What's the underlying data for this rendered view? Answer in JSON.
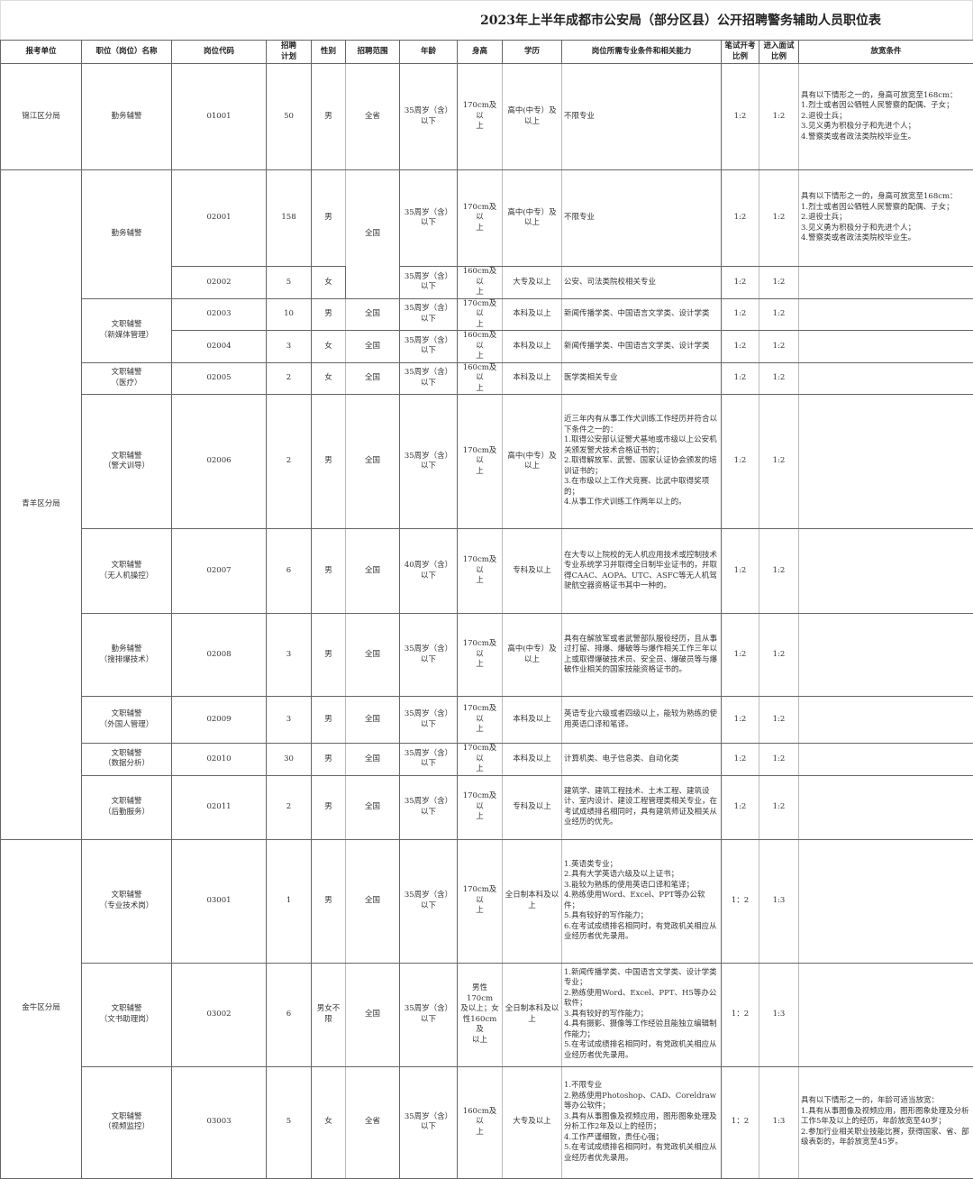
{
  "title": "2023年上半年成都市公安局（部分区县）公开招聘警务辅助人员职位表",
  "headers": [
    "报考单位",
    "职位（岗位）名称",
    "岗位代码",
    "招聘\n计划",
    "性别",
    "招聘范围",
    "年龄",
    "身高",
    "学历",
    "岗位所需专业条件和相关能力",
    "笔试开考\n比例",
    "进入面试\n比例",
    "放宽条件"
  ],
  "units": [
    {
      "name": "锦江区分局",
      "positions": [
        {
          "title": "勤务辅警",
          "subtitle": "",
          "rows": [
            {
              "code": "01001",
              "count": "50",
              "gender": "男",
              "scope": "全省",
              "age": "35周岁（含）\n以下",
              "height": "170cm及以\n上",
              "edu": "高中(中专）及\n以上",
              "major": "不限专业",
              "written": "1:2",
              "interview": "1:2",
              "relax": "具有以下情形之一的，身高可放宽至168cm：\n1.烈士或者因公牺牲人民警察的配偶、子女；\n2.退役士兵；\n3.见义勇为积极分子和先进个人；\n4.警察类或者政法类院校毕业生。"
            }
          ]
        }
      ]
    },
    {
      "name": "青羊区分局",
      "positions": [
        {
          "title": "勤务辅警",
          "subtitle": "",
          "scope": "全国",
          "rows": [
            {
              "code": "02001",
              "count": "158",
              "gender": "男",
              "age": "35周岁（含）\n以下",
              "height": "170cm及以\n上",
              "edu": "高中(中专）及\n以上",
              "major": "不限专业",
              "written": "1:2",
              "interview": "1:2",
              "relax": "具有以下情形之一的，身高可放宽至168cm：\n1.烈士或者因公牺牲人民警察的配偶、子女；\n2.退役士兵；\n3.见义勇为积极分子和先进个人；\n4.警察类或者政法类院校毕业生。"
            },
            {
              "code": "02002",
              "count": "5",
              "gender": "女",
              "age": "35周岁（含）\n以下",
              "height": "160cm及以\n上",
              "edu": "大专及以上",
              "major": "公安、司法类院校相关专业",
              "written": "1:2",
              "interview": "1:2",
              "relax": ""
            }
          ]
        },
        {
          "title": "文职辅警",
          "subtitle": "（新媒体管理）",
          "rows": [
            {
              "code": "02003",
              "count": "10",
              "gender": "男",
              "scope": "全国",
              "age": "35周岁（含）\n以下",
              "height": "170cm及以\n上",
              "edu": "本科及以上",
              "major": "新闻传播学类、中国语言文学类、设计学类",
              "written": "1:2",
              "interview": "1:2",
              "relax": ""
            },
            {
              "code": "02004",
              "count": "3",
              "gender": "女",
              "scope": "全国",
              "age": "35周岁（含）\n以下",
              "height": "160cm及以\n上",
              "edu": "本科及以上",
              "major": "新闻传播学类、中国语言文学类、设计学类",
              "written": "1:2",
              "interview": "1:2",
              "relax": ""
            }
          ]
        },
        {
          "title": "文职辅警",
          "subtitle": "（医疗）",
          "rows": [
            {
              "code": "02005",
              "count": "2",
              "gender": "女",
              "scope": "全国",
              "age": "35周岁（含）\n以下",
              "height": "160cm及以\n上",
              "edu": "本科及以上",
              "major": "医学类相关专业",
              "written": "1:2",
              "interview": "1:2",
              "relax": ""
            }
          ]
        },
        {
          "title": "文职辅警",
          "subtitle": "（警犬训导）",
          "rows": [
            {
              "code": "02006",
              "count": "2",
              "gender": "男",
              "scope": "全国",
              "age": "35周岁（含）\n以下",
              "height": "170cm及以\n上",
              "edu": "高中(中专）及\n以上",
              "major": "近三年内有从事工作犬训练工作经历并符合以下条件之一的：\n1.取得公安部认证警犬基地或市级以上公安机关颁发警犬技术合格证书的；\n2.取得解放军、武警、国家认证协会颁发的培训证书的；\n3.在市级以上工作犬竞赛、比武中取得奖项的；\n4.从事工作犬训练工作两年以上的。",
              "written": "1:2",
              "interview": "1:2",
              "relax": ""
            }
          ]
        },
        {
          "title": "文职辅警",
          "subtitle": "（无人机操控）",
          "rows": [
            {
              "code": "02007",
              "count": "6",
              "gender": "男",
              "scope": "全国",
              "age": "40周岁（含）\n以下",
              "height": "170cm及以\n上",
              "edu": "专科及以上",
              "major": "在大专以上院校的无人机应用技术或控制技术专业系统学习并取得全日制毕业证书的，并取得CAAC、AOPA、UTC、ASFC等无人机驾驶航空器资格证书其中一种的。",
              "written": "1:2",
              "interview": "1:2",
              "relax": ""
            }
          ]
        },
        {
          "title": "勤务辅警",
          "subtitle": "（搜排爆技术）",
          "rows": [
            {
              "code": "02008",
              "count": "3",
              "gender": "男",
              "scope": "全国",
              "age": "35周岁（含）\n以下",
              "height": "170cm及以\n上",
              "edu": "高中(中专）及\n以上",
              "major": "具有在解放军或者武警部队服役经历，且从事过打留、排爆、爆破等与爆作相关工作三年以上或取得爆破技术员、安全员、爆破员等与爆破作业相关的国家技能资格证书的。",
              "written": "1:2",
              "interview": "1:2",
              "relax": ""
            }
          ]
        },
        {
          "title": "文职辅警",
          "subtitle": "（外国人管理）",
          "rows": [
            {
              "code": "02009",
              "count": "3",
              "gender": "男",
              "scope": "全国",
              "age": "35周岁（含）\n以下",
              "height": "170cm及以\n上",
              "edu": "本科及以上",
              "major": "英语专业六级或者四级以上，能较为熟练的使用英语口译和笔译。",
              "written": "1:2",
              "interview": "1:2",
              "relax": ""
            }
          ]
        },
        {
          "title": "文职辅警",
          "subtitle": "（数据分析）",
          "rows": [
            {
              "code": "02010",
              "count": "30",
              "gender": "男",
              "scope": "全国",
              "age": "35周岁（含）\n以下",
              "height": "170cm及以\n上",
              "edu": "本科及以上",
              "major": "计算机类、电子信息类、自动化类",
              "written": "1:2",
              "interview": "1:2",
              "relax": ""
            }
          ]
        },
        {
          "title": "文职辅警",
          "subtitle": "（后勤服务）",
          "rows": [
            {
              "code": "02011",
              "count": "2",
              "gender": "男",
              "scope": "全国",
              "age": "35周岁（含）\n以下",
              "height": "170cm及以\n上",
              "edu": "专科及以上",
              "major": "建筑学、建筑工程技术、土木工程、建筑设计、室内设计、建设工程管理类相关专业，在考试成绩排名相同时，具有建筑师证及相关从业经历的优先。",
              "written": "1:2",
              "interview": "1:2",
              "relax": ""
            }
          ]
        }
      ]
    },
    {
      "name": "金牛区分局",
      "positions": [
        {
          "title": "文职辅警",
          "subtitle": "（专业技术岗）",
          "rows": [
            {
              "code": "03001",
              "count": "1",
              "gender": "男",
              "scope": "全国",
              "age": "35周岁（含）\n以下",
              "height": "170cm及以\n上",
              "edu": "全日制本科及以\n上",
              "major": "1.英语类专业；\n2.具有大学英语六级及以上证书；\n3.能较为熟练的使用英语口译和笔译；\n4.熟练使用Word、Excel、PPT等办公软件；\n5.具有较好的写作能力；\n6.在考试成绩排名相同时，有党政机关相应从业经历者优先录用。",
              "written": "1：2",
              "interview": "1:3",
              "relax": ""
            }
          ]
        },
        {
          "title": "文职辅警",
          "subtitle": "（文书助理岗）",
          "rows": [
            {
              "code": "03002",
              "count": "6",
              "gender": "男女不\n限",
              "scope": "全国",
              "age": "35周岁（含）\n以下",
              "height": "男性170cm\n及以上；女\n性160cm及\n以上",
              "edu": "全日制本科及以\n上",
              "major": "1.新闻传播学类、中国语言文学类、设计学类专业；\n2.熟练使用Word、Excel、PPT、H5等办公软件；\n3.具有较好的写作能力；\n4.具有摄影、摄像等工作经验且能独立编辑制作能力；\n5.在考试成绩排名相同时，有党政机关相应从业经历者优先录用。",
              "written": "1：2",
              "interview": "1:3",
              "relax": ""
            }
          ]
        },
        {
          "title": "文职辅警",
          "subtitle": "（视频监控）",
          "rows": [
            {
              "code": "03003",
              "count": "5",
              "gender": "女",
              "scope": "全省",
              "age": "35周岁（含）\n以下",
              "height": "160cm及以\n上",
              "edu": "大专及以上",
              "major": "1.不限专业\n2.熟练使用Photoshop、CAD、Coreldraw等办公软件；\n3.具有从事图像及视频应用，图形图象处理及分析工作2年及以上的经历；\n4.工作严谨细致，责任心强；\n5.在考试成绩排名相同时，有党政机关相应从业经历者优先录用。",
              "written": "1：2",
              "interview": "1:3",
              "relax": "具有以下情形之一的，年龄可适当放宽：\n1.具有从事图像及视频应用，图形图象处理及分析工作5年及以上的经历，年龄放宽至40岁；\n2.参加行业相关职业技能比赛，获得国家、省、部级表彰的，年龄放宽至45岁。"
            }
          ]
        }
      ]
    }
  ]
}
